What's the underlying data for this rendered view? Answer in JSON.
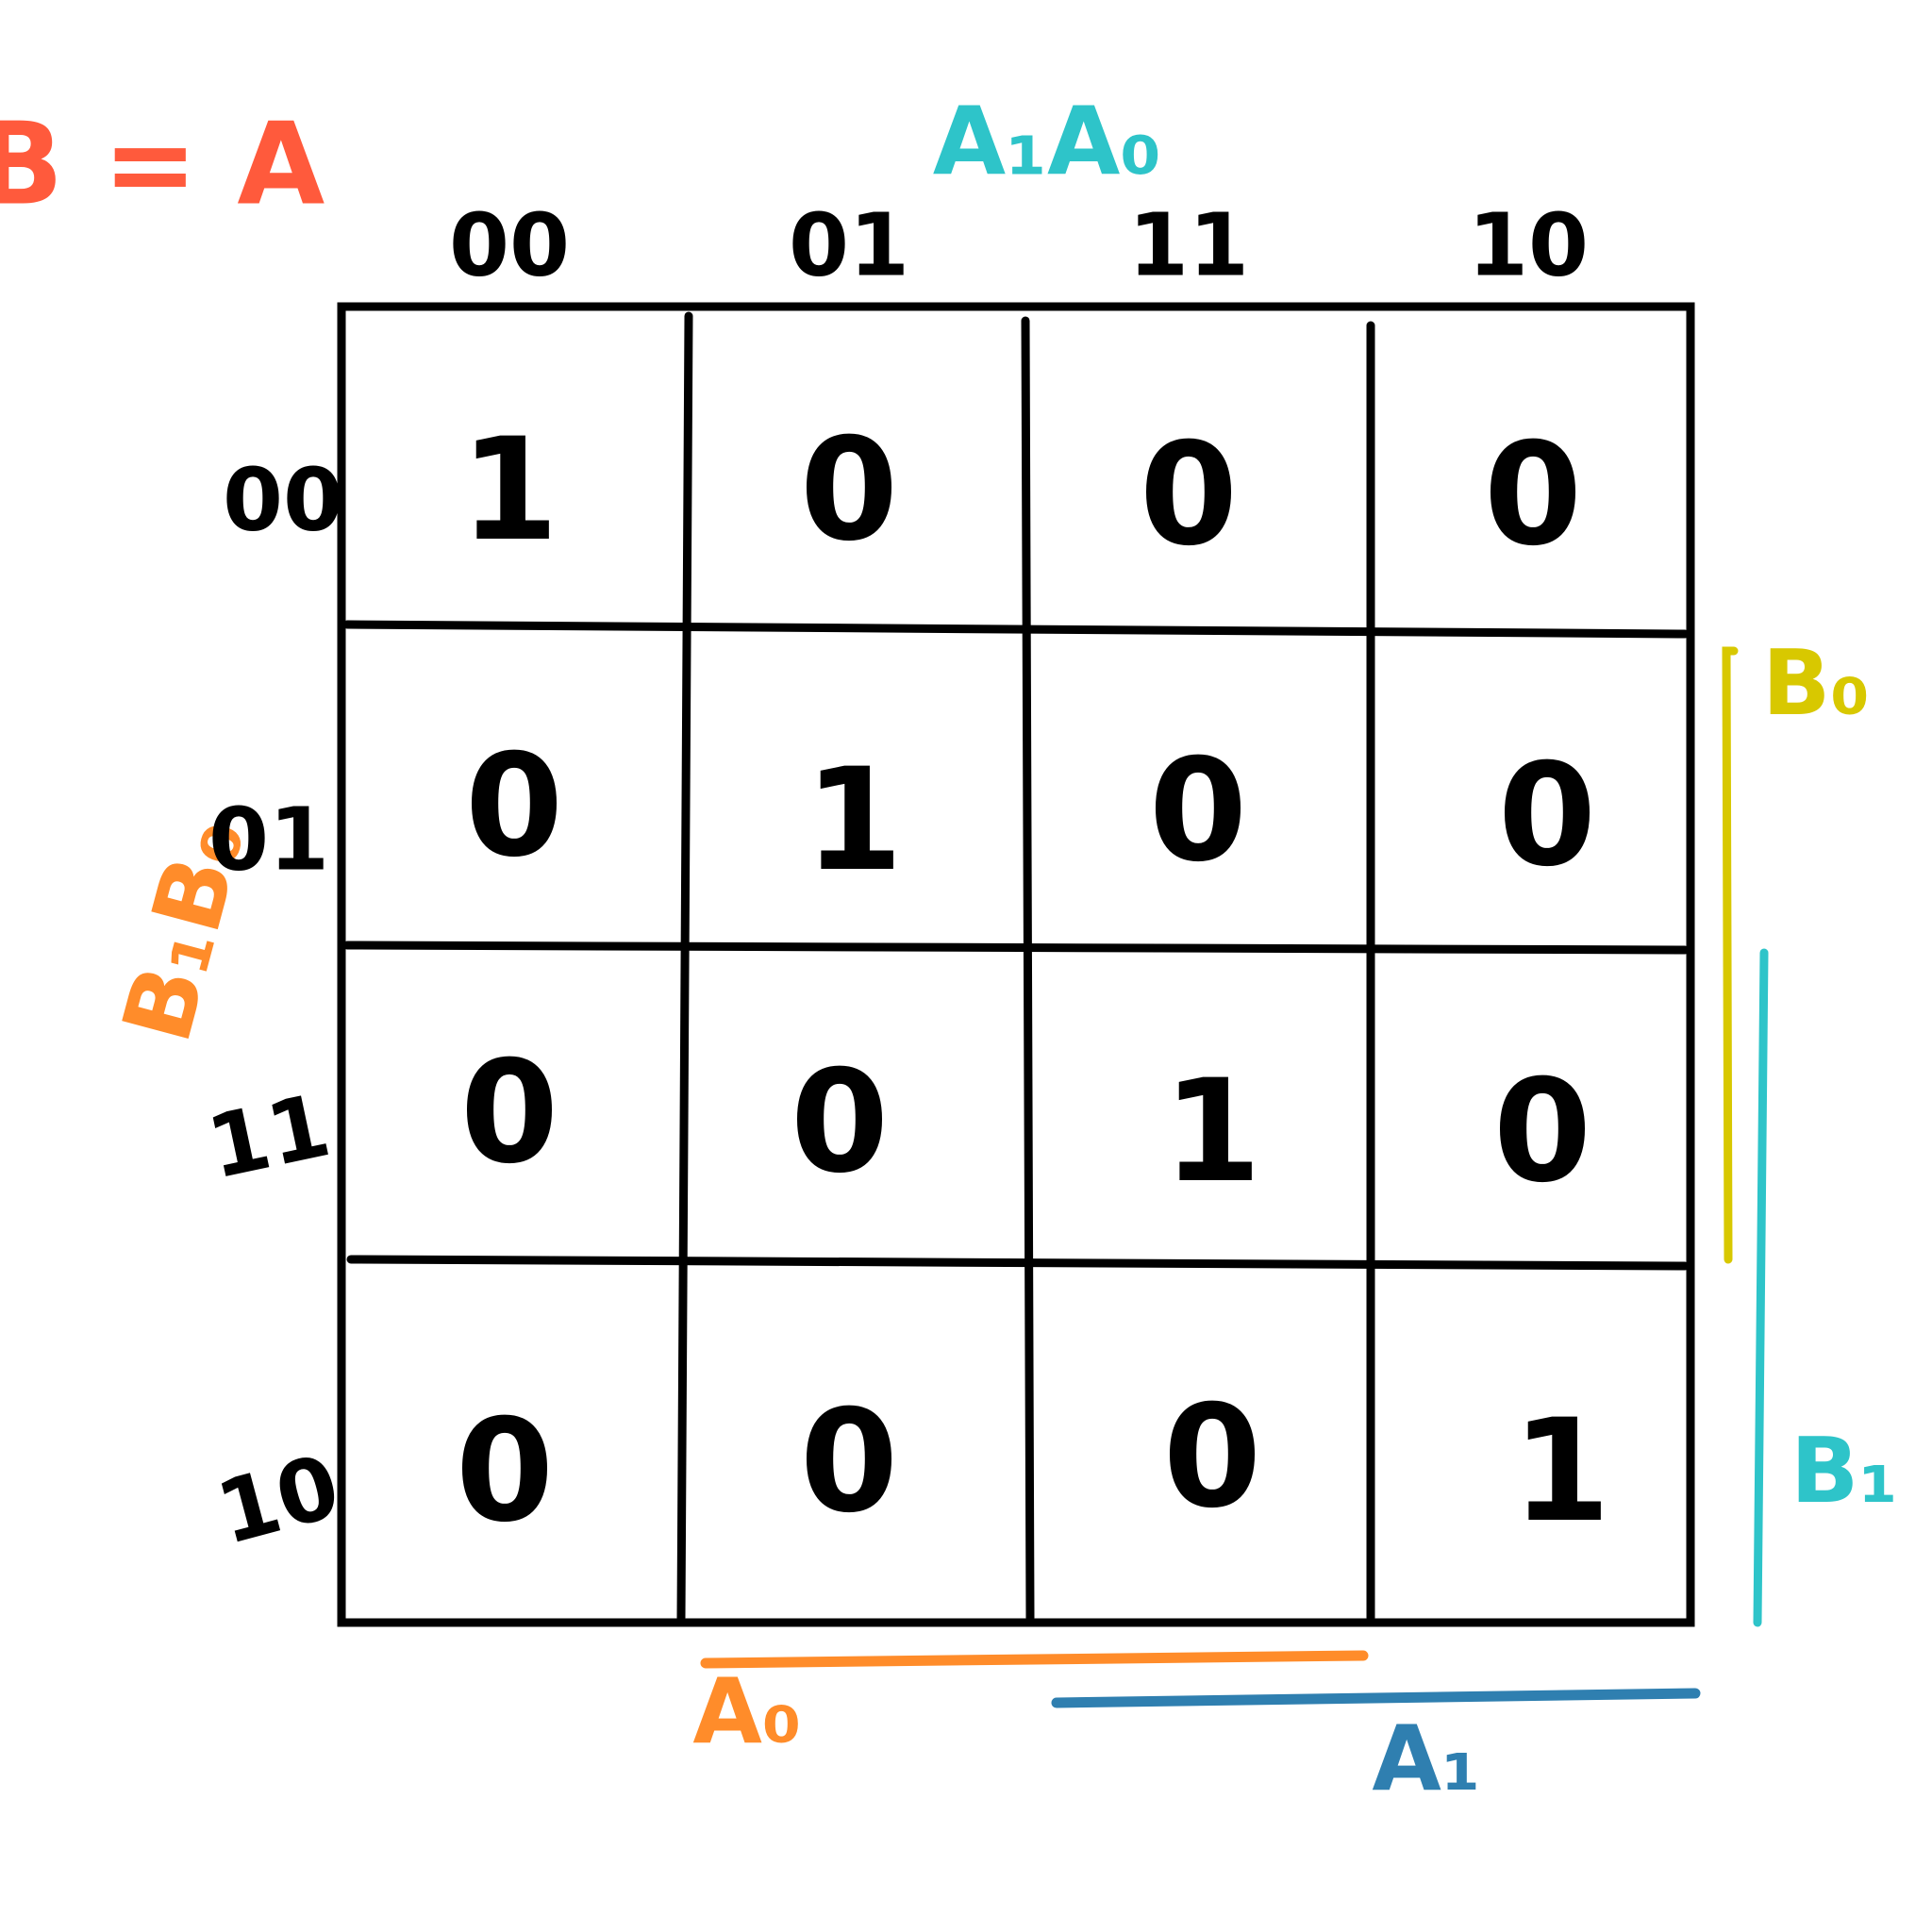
{
  "title": "B = A",
  "column_variables": "A₁A₀",
  "row_variables": "B₁B₀",
  "column_headers": [
    "00",
    "01",
    "11",
    "10"
  ],
  "row_headers": [
    "00",
    "01",
    "11",
    "10"
  ],
  "cells": [
    [
      "1",
      "0",
      "0",
      "0"
    ],
    [
      "0",
      "1",
      "0",
      "0"
    ],
    [
      "0",
      "0",
      "1",
      "0"
    ],
    [
      "0",
      "0",
      "0",
      "1"
    ]
  ],
  "bracket_labels": {
    "a0": "A₀",
    "a1": "A₁",
    "b0": "B₀",
    "b1": "B₁"
  },
  "colors": {
    "title": "#ff5a3c",
    "column_variables": "#2ec4c9",
    "row_variables": "#ff8c2a",
    "a0": "#ff8c2a",
    "a1": "#2f7fb0",
    "b0": "#d8c800",
    "b1": "#2ec4c9",
    "grid": "#000000"
  }
}
